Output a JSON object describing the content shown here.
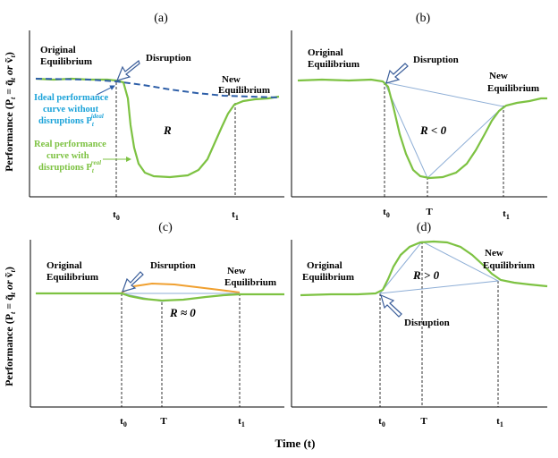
{
  "panel_labels": [
    "(a)",
    "(b)",
    "(c)",
    "(d)"
  ],
  "y_axis_label": "Performance (P",
  "y_axis_label_tail": " = q̃",
  "y_axis_label_or": " or ",
  "y_axis_label_v": "ṽ",
  "y_axis_label_close": ")",
  "x_axis_label": "Time (t)",
  "ticks": {
    "t0": "t",
    "t0_sub": "0",
    "T": "T",
    "t1": "t",
    "t1_sub": "1"
  },
  "a": {
    "original_line1": "Original",
    "original_line2": "Equilibrium",
    "disruption": "Disruption",
    "new_line1": "New",
    "new_line2": "Equilibrium",
    "R": "R",
    "ideal_line1": "Ideal performance",
    "ideal_line2": "curve without",
    "ideal_line3": "disruptions P",
    "ideal_sup": "ideal",
    "ideal_sub": "t",
    "real_line1": "Real performance",
    "real_line2": "curve with",
    "real_line3": "disruptions P",
    "real_sup": "real",
    "real_sub": "t"
  },
  "b": {
    "original_line1": "Original",
    "original_line2": "Equilibrium",
    "disruption": "Disruption",
    "new_line1": "New",
    "new_line2": "Equilibrium",
    "R": "R < 0"
  },
  "c": {
    "original_line1": "Original",
    "original_line2": "Equilibrium",
    "disruption": "Disruption",
    "new_line1": "New",
    "new_line2": "Equilibrium",
    "R": "R ≈ 0"
  },
  "d": {
    "original_line1": "Original",
    "original_line2": "Equilibrium",
    "disruption": "Disruption",
    "new_line1": "New",
    "new_line2": "Equilibrium",
    "R": "R > 0"
  },
  "colors": {
    "real_curve": "#7dc242",
    "ideal_curve": "#2e5fa8",
    "ideal_text": "#1ca3d9",
    "real_text": "#7dc242",
    "triangle": "#8eaed6",
    "orange_curve": "#f0a030",
    "arrow_outline": "#3b5e9a"
  }
}
